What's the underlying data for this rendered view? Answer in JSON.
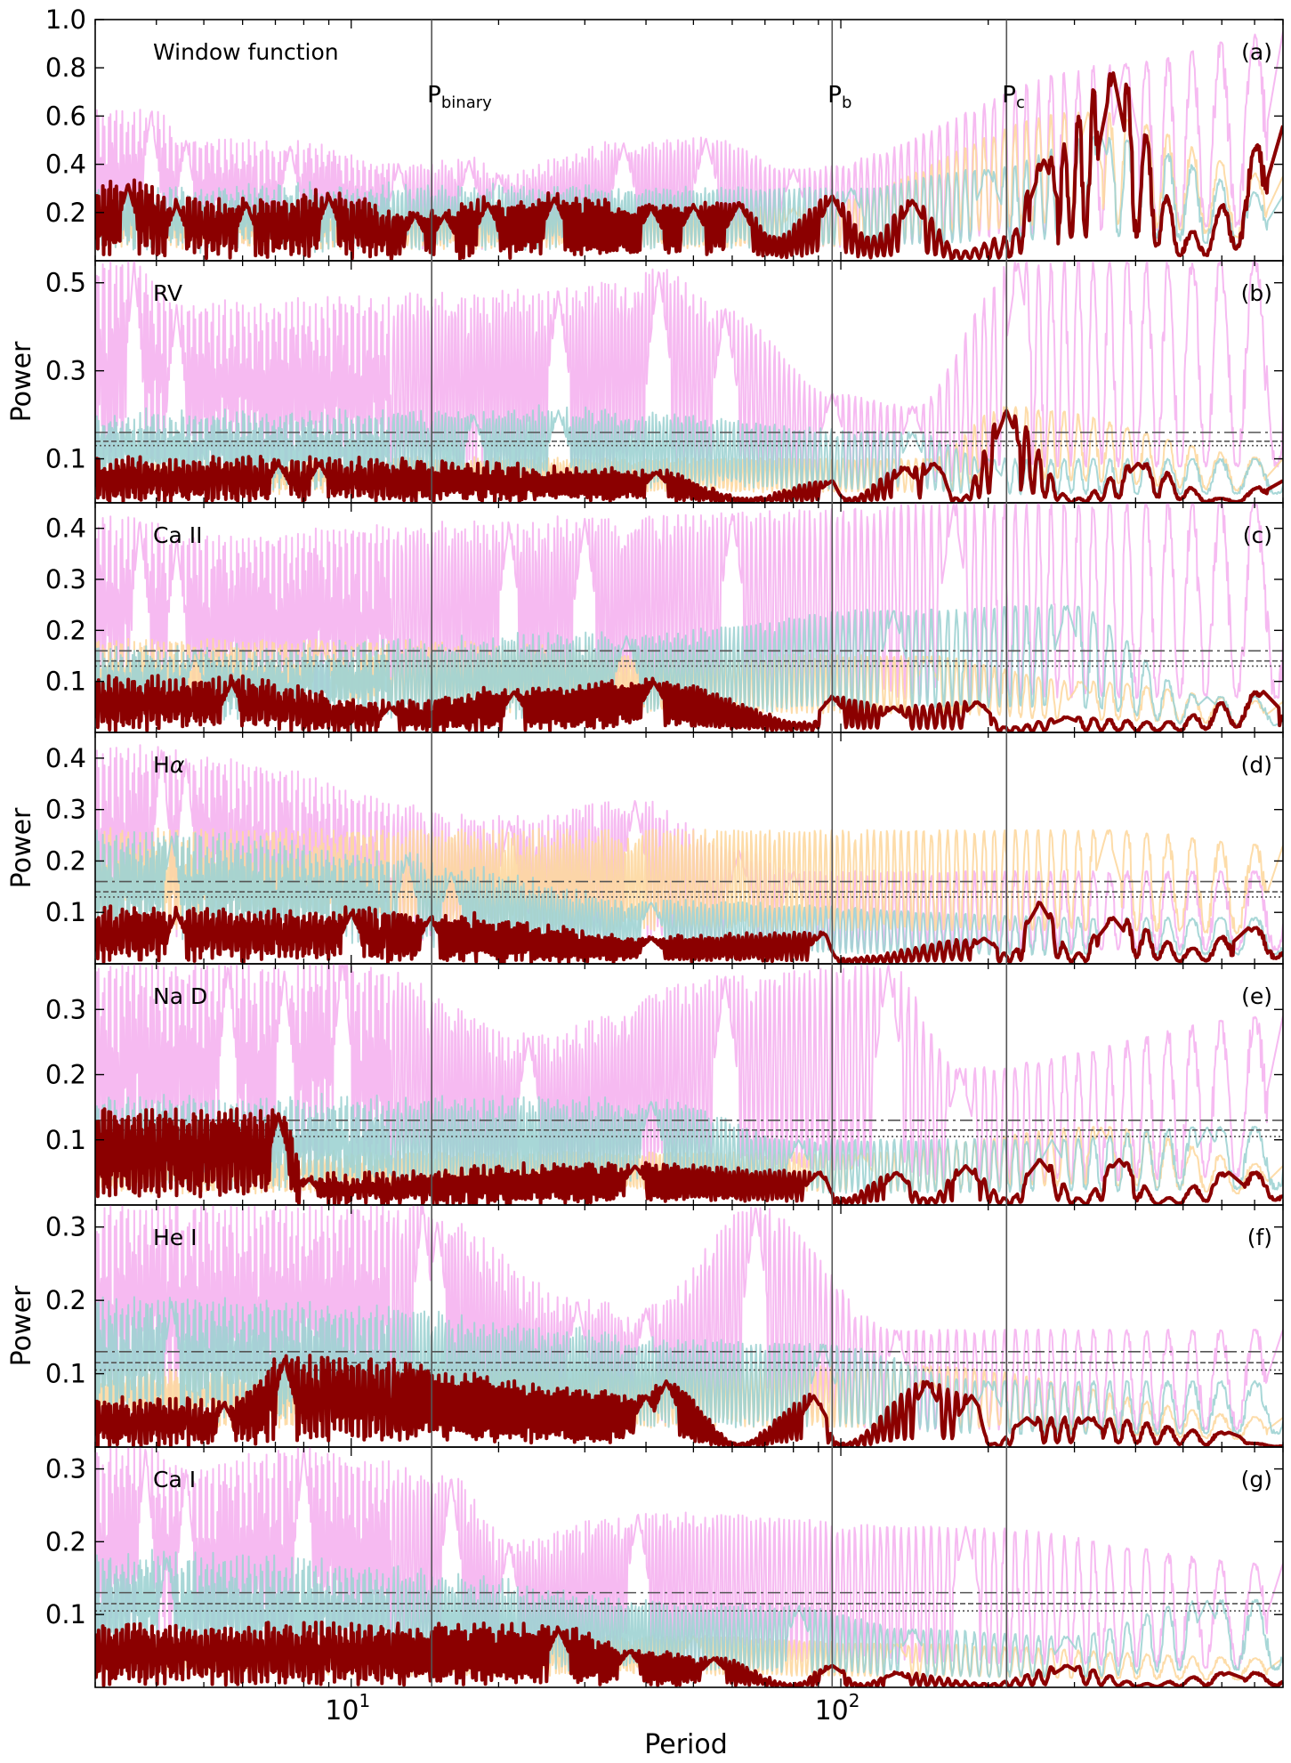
{
  "chart_data": {
    "type": "line",
    "xlabel": "Period",
    "x_scale": "log",
    "xlim": [
      3.0,
      800
    ],
    "x_ticks": [
      {
        "value": 10,
        "base": "10",
        "exp": "1"
      },
      {
        "value": 100,
        "base": "10",
        "exp": "2"
      }
    ],
    "vertical_lines": [
      {
        "name": "P_binary",
        "period": 14.6,
        "label_main": "P",
        "label_sub": "binary"
      },
      {
        "name": "P_b",
        "period": 96,
        "label_main": "P",
        "label_sub": "b"
      },
      {
        "name": "P_c",
        "period": 218,
        "label_main": "P",
        "label_sub": "c"
      }
    ],
    "colors": {
      "main": "#8b0000",
      "magenta": "#f5b3ef",
      "orange": "#fdd8a0",
      "teal": "#9ed3d3",
      "threshold": "#555555",
      "vline": "#555555"
    },
    "panels": [
      {
        "id": "a",
        "label": "(a)",
        "name": "Window function",
        "ylabel": "",
        "ylim": [
          0.0,
          1.0
        ],
        "yticks": [
          "0.2",
          "0.4",
          "0.6",
          "0.8",
          "1.0"
        ],
        "ytick_values": [
          0.2,
          0.4,
          0.6,
          0.8,
          1.0
        ],
        "thresholds": [],
        "main_peaks": [
          [
            3.5,
            0.32
          ],
          [
            4.4,
            0.24
          ],
          [
            6.1,
            0.24
          ],
          [
            9.0,
            0.27
          ],
          [
            13.5,
            0.19
          ],
          [
            15.5,
            0.19
          ],
          [
            19.0,
            0.24
          ],
          [
            26.0,
            0.26
          ],
          [
            41.0,
            0.22
          ],
          [
            50.0,
            0.23
          ],
          [
            62.0,
            0.24
          ],
          [
            96.0,
            0.27
          ],
          [
            140.0,
            0.25
          ],
          [
            260.0,
            0.42
          ],
          [
            360.0,
            0.78
          ],
          [
            800.0,
            0.56
          ]
        ],
        "main_valleys": [
          [
            73.0,
            0.1
          ],
          [
            115.0,
            0.1
          ],
          [
            176.0,
            0.04
          ],
          [
            218.0,
            0.1
          ],
          [
            520.0,
            0.12
          ]
        ],
        "magenta_peaks": [
          [
            3.9,
            0.62
          ],
          [
            4.6,
            0.5
          ],
          [
            7.5,
            0.48
          ],
          [
            12.5,
            0.4
          ],
          [
            17.4,
            0.42
          ],
          [
            20.0,
            0.36
          ],
          [
            36.0,
            0.49
          ],
          [
            53.0,
            0.51
          ],
          [
            80.0,
            0.38
          ],
          [
            380.0,
            0.82
          ],
          [
            800.0,
            0.95
          ]
        ],
        "orange_peaks": [
          [
            80.0,
            0.22
          ],
          [
            320.0,
            0.62
          ],
          [
            800.0,
            0.35
          ]
        ],
        "teal_peaks": [
          [
            105.0,
            0.3
          ],
          [
            200.0,
            0.38
          ],
          [
            340.0,
            0.52
          ],
          [
            800.0,
            0.27
          ]
        ]
      },
      {
        "id": "b",
        "label": "(b)",
        "name": "RV",
        "ylabel": "Power",
        "ylim": [
          0.0,
          0.55
        ],
        "yticks": [
          "0.1",
          "0.3",
          "0.5"
        ],
        "ytick_values": [
          0.1,
          0.3,
          0.5
        ],
        "thresholds": [
          0.16,
          0.14,
          0.13
        ],
        "main_peaks": [
          [
            7.1,
            0.09
          ],
          [
            8.6,
            0.09
          ],
          [
            42.0,
            0.07
          ],
          [
            96.0,
            0.05
          ],
          [
            135.0,
            0.08
          ],
          [
            155.0,
            0.09
          ],
          [
            218.0,
            0.21
          ],
          [
            405.0,
            0.09
          ],
          [
            800.0,
            0.05
          ]
        ],
        "main_valleys": [
          [
            64.0,
            0.01
          ],
          [
            103.0,
            0.01
          ],
          [
            174.0,
            0.01
          ],
          [
            300.0,
            0.01
          ],
          [
            600.0,
            0.01
          ]
        ],
        "magenta_peaks": [
          [
            3.6,
            0.55
          ],
          [
            4.4,
            0.45
          ],
          [
            26.5,
            0.48
          ],
          [
            42.5,
            0.53
          ],
          [
            58.0,
            0.44
          ],
          [
            96.0,
            0.25
          ],
          [
            140.0,
            0.22
          ],
          [
            230.0,
            0.55
          ]
        ],
        "orange_peaks": [
          [
            150.0,
            0.1
          ],
          [
            218.0,
            0.22
          ],
          [
            800.0,
            0.1
          ]
        ],
        "teal_peaks": [
          [
            17.8,
            0.2
          ],
          [
            26.5,
            0.21
          ],
          [
            140.0,
            0.16
          ],
          [
            200.0,
            0.1
          ]
        ]
      },
      {
        "id": "c",
        "label": "(c)",
        "name": "Ca II",
        "ylabel": "",
        "ylim": [
          0.0,
          0.45
        ],
        "yticks": [
          "0.1",
          "0.2",
          "0.3",
          "0.4"
        ],
        "ytick_values": [
          0.1,
          0.2,
          0.3,
          0.4
        ],
        "thresholds": [
          0.16,
          0.14,
          0.13
        ],
        "main_peaks": [
          [
            5.7,
            0.1
          ],
          [
            12.0,
            0.05
          ],
          [
            21.5,
            0.08
          ],
          [
            41.5,
            0.1
          ],
          [
            96.0,
            0.07
          ],
          [
            128.0,
            0.05
          ],
          [
            190.0,
            0.06
          ],
          [
            290.0,
            0.03
          ],
          [
            730.0,
            0.08
          ]
        ],
        "main_valleys": [
          [
            87.0,
            0.02
          ],
          [
            218.0,
            0.01
          ],
          [
            450.0,
            0.02
          ]
        ],
        "magenta_peaks": [
          [
            3.7,
            0.42
          ],
          [
            4.4,
            0.38
          ],
          [
            21.0,
            0.41
          ],
          [
            30.0,
            0.42
          ],
          [
            60.0,
            0.43
          ],
          [
            170.0,
            0.45
          ]
        ],
        "orange_peaks": [
          [
            8.7,
            0.18
          ],
          [
            150.0,
            0.15
          ],
          [
            310.0,
            0.1
          ],
          [
            800.0,
            0.06
          ]
        ],
        "teal_peaks": [
          [
            4.8,
            0.16
          ],
          [
            36.5,
            0.19
          ],
          [
            128.0,
            0.24
          ],
          [
            290.0,
            0.25
          ],
          [
            560.0,
            0.07
          ]
        ]
      },
      {
        "id": "d",
        "label": "(d)",
        "name": "Hα",
        "ylabel": "Power",
        "ylim": [
          0.0,
          0.45
        ],
        "yticks": [
          "0.1",
          "0.2",
          "0.3",
          "0.4"
        ],
        "ytick_values": [
          0.1,
          0.2,
          0.3,
          0.4
        ],
        "thresholds": [
          0.16,
          0.14,
          0.13
        ],
        "main_peaks": [
          [
            4.4,
            0.1
          ],
          [
            10.0,
            0.1
          ],
          [
            14.5,
            0.09
          ],
          [
            41.0,
            0.05
          ],
          [
            92.0,
            0.06
          ],
          [
            196.0,
            0.05
          ],
          [
            255.0,
            0.12
          ],
          [
            360.0,
            0.09
          ],
          [
            680.0,
            0.07
          ]
        ],
        "main_valleys": [
          [
            100.0,
            0.01
          ],
          [
            220.0,
            0.02
          ],
          [
            300.0,
            0.02
          ],
          [
            520.0,
            0.03
          ]
        ],
        "magenta_peaks": [
          [
            4.1,
            0.42
          ],
          [
            4.6,
            0.4
          ],
          [
            21.0,
            0.28
          ],
          [
            38.0,
            0.32
          ],
          [
            62.0,
            0.22
          ],
          [
            80.0,
            0.18
          ]
        ],
        "orange_peaks": [
          [
            350.0,
            0.26
          ],
          [
            800.0,
            0.23
          ]
        ],
        "teal_peaks": [
          [
            4.3,
            0.25
          ],
          [
            13.0,
            0.21
          ],
          [
            16.0,
            0.18
          ],
          [
            41.0,
            0.12
          ],
          [
            360.0,
            0.09
          ]
        ]
      },
      {
        "id": "e",
        "label": "(e)",
        "name": "Na D",
        "ylabel": "",
        "ylim": [
          0.0,
          0.37
        ],
        "yticks": [
          "0.1",
          "0.2",
          "0.3"
        ],
        "ytick_values": [
          0.1,
          0.2,
          0.3
        ],
        "thresholds": [
          0.13,
          0.115,
          0.105
        ],
        "main_peaks": [
          [
            7.1,
            0.14
          ],
          [
            8.2,
            0.04
          ],
          [
            38.0,
            0.06
          ],
          [
            90.0,
            0.05
          ],
          [
            130.0,
            0.05
          ],
          [
            180.0,
            0.06
          ],
          [
            255.0,
            0.07
          ],
          [
            370.0,
            0.07
          ],
          [
            620.0,
            0.05
          ]
        ],
        "main_valleys": [
          [
            100.0,
            0.01
          ],
          [
            150.0,
            0.01
          ],
          [
            220.0,
            0.01
          ],
          [
            310.0,
            0.01
          ],
          [
            450.0,
            0.01
          ]
        ],
        "magenta_peaks": [
          [
            5.6,
            0.37
          ],
          [
            7.3,
            0.36
          ],
          [
            9.6,
            0.38
          ],
          [
            23.0,
            0.26
          ],
          [
            58.0,
            0.35
          ],
          [
            125.0,
            0.37
          ],
          [
            175.0,
            0.21
          ],
          [
            800.0,
            0.29
          ]
        ],
        "orange_peaks": [
          [
            110.0,
            0.08
          ],
          [
            340.0,
            0.12
          ],
          [
            800.0,
            0.06
          ]
        ],
        "teal_peaks": [
          [
            41.0,
            0.16
          ],
          [
            82.0,
            0.1
          ],
          [
            270.0,
            0.1
          ],
          [
            560.0,
            0.12
          ]
        ]
      },
      {
        "id": "f",
        "label": "(f)",
        "name": "He I",
        "ylabel": "Power",
        "ylim": [
          0.0,
          0.33
        ],
        "yticks": [
          "0.1",
          "0.2",
          "0.3"
        ],
        "ytick_values": [
          0.1,
          0.2,
          0.3
        ],
        "thresholds": [
          0.13,
          0.115,
          0.105
        ],
        "main_peaks": [
          [
            5.5,
            0.06
          ],
          [
            7.3,
            0.12
          ],
          [
            40.0,
            0.07
          ],
          [
            44.0,
            0.09
          ],
          [
            88.0,
            0.07
          ],
          [
            150.0,
            0.09
          ],
          [
            185.0,
            0.07
          ],
          [
            240.0,
            0.04
          ],
          [
            320.0,
            0.04
          ],
          [
            620.0,
            0.02
          ]
        ],
        "main_valleys": [
          [
            62.0,
            0.005
          ],
          [
            100.0,
            0.005
          ],
          [
            205.0,
            0.005
          ],
          [
            700.0,
            0.005
          ]
        ],
        "magenta_peaks": [
          [
            14.0,
            0.33
          ],
          [
            15.0,
            0.31
          ],
          [
            29.0,
            0.2
          ],
          [
            40.0,
            0.19
          ],
          [
            67.0,
            0.33
          ],
          [
            130.0,
            0.16
          ],
          [
            800.0,
            0.16
          ]
        ],
        "orange_peaks": [
          [
            150.0,
            0.11
          ],
          [
            800.0,
            0.04
          ]
        ],
        "teal_peaks": [
          [
            4.3,
            0.2
          ],
          [
            92.0,
            0.14
          ],
          [
            200.0,
            0.09
          ]
        ]
      },
      {
        "id": "g",
        "label": "(g)",
        "name": "Ca I",
        "ylabel": "",
        "ylim": [
          0.0,
          0.33
        ],
        "yticks": [
          "0.1",
          "0.2",
          "0.3"
        ],
        "ytick_values": [
          0.1,
          0.2,
          0.3
        ],
        "thresholds": [
          0.13,
          0.115,
          0.105
        ],
        "main_peaks": [
          [
            26.5,
            0.08
          ],
          [
            37.0,
            0.05
          ],
          [
            55.0,
            0.04
          ],
          [
            96.0,
            0.03
          ],
          [
            130.0,
            0.02
          ],
          [
            290.0,
            0.03
          ],
          [
            620.0,
            0.02
          ]
        ],
        "main_valleys": [
          [
            80.0,
            0.005
          ],
          [
            110.0,
            0.005
          ],
          [
            200.0,
            0.005
          ],
          [
            420.0,
            0.005
          ]
        ],
        "magenta_peaks": [
          [
            3.8,
            0.33
          ],
          [
            4.6,
            0.3
          ],
          [
            8.0,
            0.33
          ],
          [
            16.0,
            0.29
          ],
          [
            21.0,
            0.2
          ],
          [
            38.5,
            0.24
          ],
          [
            180.0,
            0.22
          ],
          [
            800.0,
            0.17
          ]
        ],
        "orange_peaks": [
          [
            50.0,
            0.07
          ],
          [
            130.0,
            0.06
          ],
          [
            800.0,
            0.04
          ]
        ],
        "teal_peaks": [
          [
            4.2,
            0.18
          ],
          [
            82.0,
            0.11
          ],
          [
            140.0,
            0.08
          ],
          [
            290.0,
            0.07
          ],
          [
            560.0,
            0.12
          ]
        ]
      }
    ]
  }
}
